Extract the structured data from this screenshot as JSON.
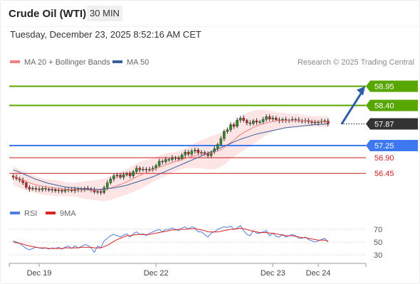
{
  "header": {
    "title": "Crude Oil (WTI)",
    "timeframe": "30 MIN",
    "datetime": "Tuesday, December 23, 2025 8:52:16 AM CET"
  },
  "colors": {
    "resistance": "#58a600",
    "current": "#333333",
    "pivot": "#3d78f0",
    "support": "#cc1f1f",
    "candle_up": "#2d8a1f",
    "candle_down": "#cc2222",
    "ma20": "#f08080",
    "bollinger_fill": "#fde1e1",
    "ma50": "#3a5f9c",
    "rsi": "#4f7fe0",
    "rsi_ma": "#dd2222",
    "arrow": "#2e5faa"
  },
  "chart_data": [
    {
      "type": "candlestick",
      "title": "Crude Oil (WTI)",
      "timeframe": "30 MIN",
      "credit": "Research © 2025 Trading Central",
      "legend": [
        {
          "name": "MA 20 + Bollinger Bands",
          "color": "#f08080"
        },
        {
          "name": "MA 50",
          "color": "#3a5f9c"
        }
      ],
      "x_ticks": [
        "Dec 19",
        "Dec 22",
        "Dec 23",
        "Dec 24"
      ],
      "x_tick_index": [
        8,
        44,
        80,
        94
      ],
      "x_range": [
        -1,
        101
      ],
      "y_range": [
        55.7,
        59.45
      ],
      "levels": [
        {
          "label": "58.95",
          "value": 58.95,
          "kind": "resistance"
        },
        {
          "label": "58.40",
          "value": 58.4,
          "kind": "resistance"
        },
        {
          "label": "57.87",
          "value": 57.87,
          "kind": "current"
        },
        {
          "label": "57.25",
          "value": 57.25,
          "kind": "pivot"
        },
        {
          "label": "56.90",
          "value": 56.9,
          "kind": "support"
        },
        {
          "label": "56.45",
          "value": 56.45,
          "kind": "support"
        }
      ],
      "close": [
        56.34,
        56.3,
        56.26,
        56.18,
        56.05,
        56.0,
        56.02,
        56.0,
        55.98,
        56.02,
        56.0,
        55.97,
        55.99,
        55.95,
        55.97,
        55.94,
        55.98,
        55.99,
        55.95,
        56.0,
        55.97,
        55.99,
        56.02,
        56.01,
        55.98,
        55.92,
        55.93,
        55.9,
        56.04,
        56.18,
        56.29,
        56.38,
        56.4,
        56.34,
        56.41,
        56.44,
        56.38,
        56.5,
        56.6,
        56.55,
        56.57,
        56.55,
        56.57,
        56.6,
        56.67,
        56.8,
        56.78,
        56.85,
        56.85,
        56.9,
        56.88,
        56.87,
        56.98,
        57.06,
        57.0,
        57.09,
        57.12,
        57.04,
        57.05,
        57.01,
        56.96,
        57.06,
        57.16,
        57.28,
        57.45,
        57.65,
        57.7,
        57.85,
        57.8,
        57.98,
        58.04,
        57.97,
        57.9,
        57.88,
        57.96,
        57.92,
        57.93,
        58.0,
        58.08,
        58.01,
        58.04,
        57.99,
        57.96,
        58.0,
        57.97,
        57.98,
        58.0,
        57.99,
        57.96,
        57.95,
        57.97,
        57.93,
        57.92,
        57.9,
        57.92,
        57.95,
        57.96,
        57.87
      ],
      "ma20": [
        56.38,
        56.34,
        56.3,
        56.26,
        56.22,
        56.18,
        56.15,
        56.12,
        56.1,
        56.08,
        56.06,
        56.05,
        56.04,
        56.03,
        56.02,
        56.01,
        56.0,
        55.99,
        55.99,
        55.98,
        55.98,
        55.97,
        55.97,
        55.97,
        55.97,
        55.97,
        55.97,
        55.97,
        55.98,
        56.0,
        56.03,
        56.07,
        56.1,
        56.13,
        56.17,
        56.21,
        56.25,
        56.3,
        56.35,
        56.39,
        56.43,
        56.47,
        56.51,
        56.55,
        56.59,
        56.63,
        56.66,
        56.7,
        56.73,
        56.76,
        56.79,
        56.82,
        56.85,
        56.88,
        56.91,
        56.94,
        56.96,
        56.98,
        57.0,
        57.01,
        57.02,
        57.04,
        57.06,
        57.09,
        57.13,
        57.19,
        57.26,
        57.34,
        57.41,
        57.49,
        57.56,
        57.62,
        57.67,
        57.72,
        57.77,
        57.81,
        57.85,
        57.88,
        57.9,
        57.92,
        57.94,
        57.95,
        57.96,
        57.97,
        57.97,
        57.97,
        57.97,
        57.97,
        57.97,
        57.96,
        57.96,
        57.95,
        57.95,
        57.94,
        57.94,
        57.94,
        57.93,
        57.93
      ],
      "ma50": [
        56.55,
        56.52,
        56.48,
        56.44,
        56.4,
        56.36,
        56.32,
        56.28,
        56.25,
        56.22,
        56.19,
        56.16,
        56.14,
        56.12,
        56.1,
        56.08,
        56.06,
        56.05,
        56.04,
        56.03,
        56.02,
        56.01,
        56.0,
        55.99,
        55.99,
        55.99,
        55.99,
        55.99,
        56.0,
        56.01,
        56.02,
        56.03,
        56.05,
        56.07,
        56.09,
        56.11,
        56.14,
        56.17,
        56.2,
        56.23,
        56.26,
        56.29,
        56.32,
        56.35,
        56.39,
        56.43,
        56.47,
        56.51,
        56.55,
        56.59,
        56.63,
        56.67,
        56.71,
        56.75,
        56.79,
        56.83,
        56.87,
        56.91,
        56.95,
        56.99,
        57.03,
        57.07,
        57.11,
        57.15,
        57.19,
        57.23,
        57.27,
        57.31,
        57.35,
        57.39,
        57.43,
        57.46,
        57.49,
        57.52,
        57.55,
        57.58,
        57.6,
        57.62,
        57.64,
        57.66,
        57.68,
        57.7,
        57.72,
        57.74,
        57.76,
        57.77,
        57.78,
        57.79,
        57.8,
        57.81,
        57.82,
        57.83,
        57.84,
        57.85,
        57.85,
        57.86,
        57.86,
        57.87
      ],
      "projection": {
        "from_value": 57.87,
        "to_value": 58.95
      }
    },
    {
      "type": "line",
      "title": "RSI",
      "legend": [
        {
          "name": "RSI",
          "color": "#4f7fe0"
        },
        {
          "name": "9MA",
          "color": "#dd2222"
        }
      ],
      "y_range": [
        24,
        80
      ],
      "y_ticks": [
        70,
        50,
        30
      ],
      "series": [
        {
          "name": "RSI",
          "values": [
            52,
            50,
            48,
            44,
            40,
            38,
            40,
            42,
            41,
            40,
            41,
            39,
            41,
            40,
            42,
            39,
            42,
            44,
            40,
            44,
            41,
            43,
            46,
            45,
            41,
            34,
            44,
            41,
            52,
            56,
            60,
            62,
            60,
            58,
            61,
            63,
            58,
            63,
            66,
            62,
            63,
            60,
            64,
            66,
            68,
            70,
            66,
            70,
            70,
            72,
            70,
            68,
            72,
            74,
            70,
            74,
            72,
            66,
            66,
            62,
            58,
            64,
            66,
            70,
            72,
            74,
            73,
            75,
            70,
            72,
            76,
            68,
            62,
            60,
            68,
            64,
            64,
            66,
            68,
            60,
            64,
            59,
            58,
            62,
            58,
            60,
            62,
            60,
            56,
            56,
            58,
            54,
            52,
            50,
            52,
            54,
            56,
            50
          ]
        },
        {
          "name": "9MA",
          "values": [
            50,
            49,
            48,
            47,
            45,
            44,
            43,
            42,
            41,
            41,
            41,
            40,
            40,
            40,
            40,
            40,
            41,
            41,
            41,
            41,
            41,
            42,
            42,
            42,
            42,
            41,
            41,
            41,
            43,
            45,
            48,
            51,
            54,
            56,
            58,
            60,
            60,
            61,
            62,
            62,
            62,
            62,
            62,
            63,
            64,
            65,
            66,
            67,
            68,
            69,
            69,
            70,
            70,
            70,
            71,
            71,
            71,
            70,
            69,
            68,
            66,
            66,
            66,
            66,
            67,
            68,
            69,
            70,
            70,
            71,
            72,
            71,
            70,
            68,
            67,
            66,
            65,
            65,
            65,
            64,
            64,
            63,
            62,
            61,
            60,
            60,
            60,
            59,
            58,
            57,
            57,
            56,
            55,
            54,
            53,
            53,
            53,
            52
          ]
        }
      ]
    }
  ]
}
